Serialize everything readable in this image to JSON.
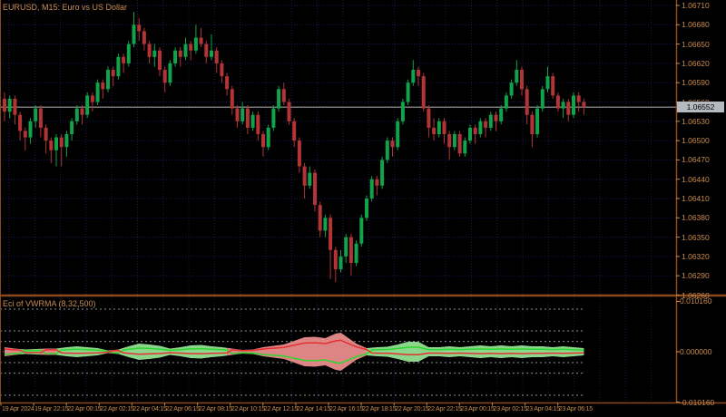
{
  "ui": {
    "main_title": "EURUSD, M15: Euro vs US Dollar",
    "indicator_title": "Eci of VWRMA (8,32,500)",
    "current_price_label": "1.06552"
  },
  "colors": {
    "background": "#000000",
    "frame": "#8A4A1C",
    "grid": "#1B1B55",
    "axis_text": "#C98C4F",
    "bull_candle": "#11A24A",
    "bear_candle": "#B23434",
    "current_price_line": "#A0A0A0",
    "price_tag_bg": "#B5B9C0",
    "band_up_fill": "#97E897",
    "band_down_fill": "#F09090",
    "green_line": "#2FD52F",
    "red_line": "#E33030",
    "level_line": "#BFBFBF"
  },
  "chart_data": [
    {
      "type": "candlestick",
      "symbol": "EURUSD",
      "timeframe": "M15",
      "title": "EURUSD, M15: Euro vs US Dollar",
      "price_encoding": "price = 1.06 + value/10000",
      "ylim": [
        1.06261,
        1.06718
      ],
      "current_price": 655.2,
      "y_tick_labels": [
        "1.06710",
        "1.06680",
        "1.06650",
        "1.06620",
        "1.06590",
        "1.06560",
        "1.06530",
        "1.06500",
        "1.06470",
        "1.06440",
        "1.06410",
        "1.06380",
        "1.06350",
        "1.06320",
        "1.06290",
        "1.06260"
      ],
      "x_tick_labels": [
        "19 Apr 2024",
        "19 Apr 22:15",
        "22 Apr 00:15",
        "22 Apr 02:15",
        "22 Apr 04:15",
        "22 Apr 06:15",
        "22 Apr 08:15",
        "22 Apr 10:15",
        "22 Apr 12:15",
        "22 Apr 14:15",
        "22 Apr 16:15",
        "22 Apr 18:15",
        "22 Apr 20:15",
        "22 Apr 22:15",
        "23 Apr 00:15",
        "23 Apr 02:15",
        "23 Apr 04:15",
        "23 Apr 06:15"
      ],
      "candles": [
        [
          656.5,
          657.5,
          653,
          654.5
        ],
        [
          654.5,
          657,
          653.5,
          656.5
        ],
        [
          656.5,
          657,
          652.5,
          654
        ],
        [
          654,
          654.5,
          650,
          651.5
        ],
        [
          651.5,
          652,
          648.5,
          650.5
        ],
        [
          650.5,
          653.5,
          649.5,
          653
        ],
        [
          653,
          655.5,
          652,
          655
        ],
        [
          655,
          655.5,
          650.5,
          652
        ],
        [
          652,
          652.5,
          648,
          650
        ],
        [
          650,
          650.5,
          646.5,
          648.5
        ],
        [
          648.5,
          651,
          646,
          650.5
        ],
        [
          650.5,
          651,
          646,
          649
        ],
        [
          649,
          651.5,
          647.5,
          651
        ],
        [
          651,
          653.5,
          650,
          653
        ],
        [
          653,
          655.5,
          652.5,
          655
        ],
        [
          655,
          655.5,
          652.5,
          654
        ],
        [
          654,
          657.5,
          653.5,
          657
        ],
        [
          657,
          657.5,
          654.5,
          656
        ],
        [
          656,
          659.5,
          655.5,
          659
        ],
        [
          659,
          659.5,
          656.5,
          658
        ],
        [
          658,
          661.5,
          657.5,
          661
        ],
        [
          661,
          661.5,
          658.5,
          660
        ],
        [
          660,
          663.5,
          659.5,
          663
        ],
        [
          663,
          663.5,
          660.5,
          662
        ],
        [
          662,
          665.5,
          661.5,
          665
        ],
        [
          665,
          670,
          664.5,
          668
        ],
        [
          668,
          669,
          665.5,
          667
        ],
        [
          667,
          667.5,
          664,
          665
        ],
        [
          665,
          665.5,
          662,
          663
        ],
        [
          663,
          665,
          661.5,
          664
        ],
        [
          664,
          664.5,
          660,
          661
        ],
        [
          661,
          661.5,
          657.5,
          659
        ],
        [
          659,
          662.5,
          658.5,
          662
        ],
        [
          662,
          664.5,
          661.5,
          664
        ],
        [
          664,
          664.5,
          661.5,
          663
        ],
        [
          663,
          666,
          662.5,
          665
        ],
        [
          665,
          665.5,
          662.5,
          664
        ],
        [
          664,
          668,
          663.5,
          666
        ],
        [
          666,
          667.5,
          664.5,
          665
        ],
        [
          665,
          665.5,
          662,
          663
        ],
        [
          663,
          666.5,
          662.5,
          664
        ],
        [
          664,
          664.5,
          660.5,
          662
        ],
        [
          662,
          662.5,
          659,
          660
        ],
        [
          660,
          660.5,
          657,
          658
        ],
        [
          658,
          658.5,
          654,
          655
        ],
        [
          655,
          655.5,
          652,
          653
        ],
        [
          653,
          656,
          652.5,
          655
        ],
        [
          655,
          655.5,
          651,
          652
        ],
        [
          652,
          654.5,
          651.5,
          654
        ],
        [
          654,
          654.5,
          650,
          651
        ],
        [
          651,
          651.5,
          647.5,
          649
        ],
        [
          649,
          652.5,
          648.5,
          652
        ],
        [
          652,
          655.5,
          651.5,
          655
        ],
        [
          655,
          658.5,
          654.5,
          658
        ],
        [
          658,
          659,
          655.5,
          656
        ],
        [
          656,
          656.5,
          652.5,
          653
        ],
        [
          653,
          653.5,
          649,
          650
        ],
        [
          650,
          650.5,
          645,
          646
        ],
        [
          646,
          646.5,
          641,
          643
        ],
        [
          643,
          646,
          642.5,
          645
        ],
        [
          645,
          645.5,
          639,
          640
        ],
        [
          640,
          640.5,
          635,
          636
        ],
        [
          636,
          638.5,
          635,
          638
        ],
        [
          638,
          638.5,
          628.5,
          633
        ],
        [
          633,
          633.5,
          628,
          630
        ],
        [
          630,
          633,
          629.5,
          632
        ],
        [
          632,
          635.5,
          631,
          635
        ],
        [
          635,
          635.5,
          629,
          631
        ],
        [
          631,
          634.5,
          630.5,
          634
        ],
        [
          634,
          638.5,
          633.5,
          638
        ],
        [
          638,
          641.5,
          637.5,
          641
        ],
        [
          641,
          644.5,
          640.5,
          644
        ],
        [
          644,
          644.5,
          641.5,
          643
        ],
        [
          643,
          647.5,
          642.5,
          647
        ],
        [
          647,
          650.5,
          646.5,
          650
        ],
        [
          650,
          650.5,
          647.5,
          649
        ],
        [
          649,
          653.5,
          648.5,
          653
        ],
        [
          653,
          656.5,
          652.5,
          656
        ],
        [
          656,
          659.5,
          655.5,
          659
        ],
        [
          659,
          662.5,
          658.5,
          661
        ],
        [
          661,
          661.5,
          658.5,
          660
        ],
        [
          660,
          660.5,
          654.5,
          655
        ],
        [
          655,
          655.5,
          650.5,
          652
        ],
        [
          652,
          653.5,
          650,
          651
        ],
        [
          651,
          653.5,
          650.5,
          653
        ],
        [
          653,
          653.5,
          649.5,
          651
        ],
        [
          651,
          651.5,
          647,
          649
        ],
        [
          649,
          651.5,
          648.5,
          651
        ],
        [
          651,
          651.5,
          647.5,
          648
        ],
        [
          648,
          650.5,
          647.5,
          650
        ],
        [
          650,
          652.5,
          649.5,
          652
        ],
        [
          652,
          652.5,
          649.5,
          651
        ],
        [
          651,
          653.5,
          650.5,
          653
        ],
        [
          653,
          653.5,
          650.5,
          652
        ],
        [
          652,
          654.5,
          651.5,
          654
        ],
        [
          654,
          654.5,
          651.5,
          653
        ],
        [
          653,
          655.5,
          652.5,
          655
        ],
        [
          655,
          657.5,
          654.5,
          657
        ],
        [
          657,
          659.5,
          656.5,
          659
        ],
        [
          659,
          662.5,
          658.5,
          661
        ],
        [
          661,
          661.5,
          657,
          658
        ],
        [
          658,
          658.5,
          652.5,
          654
        ],
        [
          654,
          654.5,
          649,
          651
        ],
        [
          651,
          655.5,
          650.5,
          655
        ],
        [
          655,
          658.5,
          654.5,
          658
        ],
        [
          658,
          661.5,
          657.5,
          660
        ],
        [
          660,
          660.5,
          656.5,
          657
        ],
        [
          657,
          657.5,
          654.5,
          655
        ],
        [
          655,
          656.5,
          653.5,
          656
        ],
        [
          656,
          656.5,
          653,
          654
        ],
        [
          654,
          657.5,
          653.5,
          657
        ],
        [
          657,
          657.5,
          654.5,
          656
        ],
        [
          656,
          656.5,
          654,
          655.2
        ]
      ]
    },
    {
      "type": "area",
      "name": "Eci of VWRMA (8,32,500)",
      "title": "Eci of VWRMA (8,32,500)",
      "y_tick_labels": [
        "0.010160",
        "0.000000",
        "-0.010160"
      ],
      "y_tick_values": [
        0.01016,
        0,
        -0.01016
      ],
      "level_values": [
        0.0086,
        0.0042,
        0.00207,
        -0.0022,
        -0.00434,
        -0.00878
      ],
      "band_samples": [
        [
          0,
          0.00092
        ],
        [
          2,
          0.00064
        ],
        [
          4,
          0.00046
        ],
        [
          6,
          0.00055
        ],
        [
          8,
          0.00064
        ],
        [
          10,
          0.00064
        ],
        [
          12,
          0.00092
        ],
        [
          14,
          0.0011
        ],
        [
          16,
          0.00092
        ],
        [
          18,
          0.00073
        ],
        [
          20,
          0.00027
        ],
        [
          22,
          0.00046
        ],
        [
          24,
          0.0011
        ],
        [
          26,
          0.00165
        ],
        [
          28,
          0.00146
        ],
        [
          30,
          0.00119
        ],
        [
          32,
          0.00064
        ],
        [
          34,
          0.00092
        ],
        [
          36,
          0.00128
        ],
        [
          38,
          0.00137
        ],
        [
          40,
          0.0011
        ],
        [
          42,
          0.00092
        ],
        [
          44,
          0.00064
        ],
        [
          46,
          0.00037
        ],
        [
          48,
          0.00046
        ],
        [
          50,
          0.00092
        ],
        [
          52,
          0.00119
        ],
        [
          54,
          0.00146
        ],
        [
          56,
          0.0022
        ],
        [
          58,
          0.00293
        ],
        [
          60,
          0.00302
        ],
        [
          62,
          0.00275
        ],
        [
          64,
          0.00366
        ],
        [
          65,
          0.00384
        ],
        [
          66,
          0.00311
        ],
        [
          68,
          0.00165
        ],
        [
          70,
          0.00073
        ],
        [
          72,
          0.00092
        ],
        [
          74,
          0.00101
        ],
        [
          76,
          0.00146
        ],
        [
          78,
          0.00201
        ],
        [
          80,
          0.00201
        ],
        [
          82,
          0.00092
        ],
        [
          84,
          0.00092
        ],
        [
          86,
          0.0011
        ],
        [
          88,
          0.00092
        ],
        [
          90,
          0.0011
        ],
        [
          92,
          0.00128
        ],
        [
          94,
          0.0011
        ],
        [
          96,
          0.00128
        ],
        [
          98,
          0.0011
        ],
        [
          100,
          0.00128
        ],
        [
          102,
          0.0011
        ],
        [
          104,
          0.0011
        ],
        [
          106,
          0.00092
        ],
        [
          108,
          0.0011
        ],
        [
          110,
          0.00092
        ],
        [
          112,
          0.00073
        ]
      ],
      "regimes": [
        [
          0,
          3,
          "down"
        ],
        [
          3,
          7,
          "up"
        ],
        [
          7,
          10,
          "down"
        ],
        [
          10,
          20,
          "up"
        ],
        [
          20,
          22,
          "down"
        ],
        [
          22,
          43,
          "up"
        ],
        [
          43,
          70,
          "down"
        ],
        [
          70,
          112,
          "up"
        ]
      ],
      "line_factors": {
        "up": {
          "green": 0.45,
          "red": -0.3
        },
        "down": {
          "green": -0.6,
          "red": 0.6
        }
      }
    }
  ]
}
